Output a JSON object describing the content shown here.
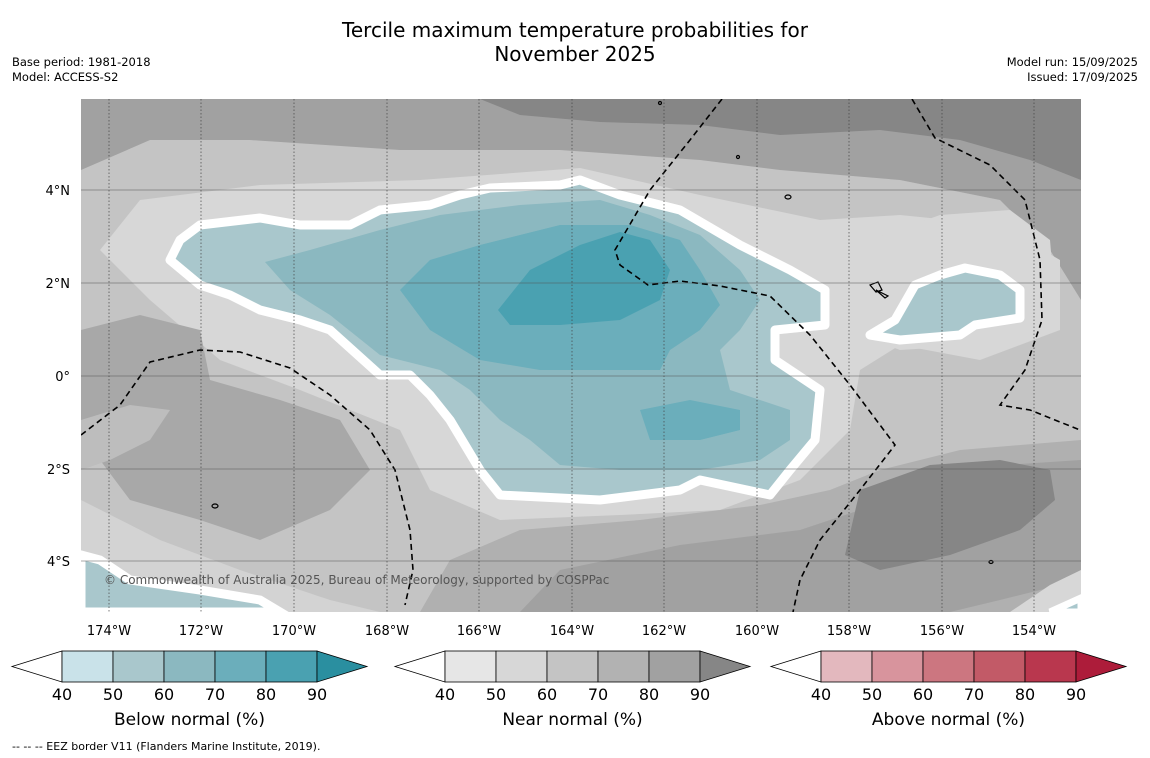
{
  "header": {
    "title_line1": "Tercile maximum temperature probabilities for",
    "title_line2": "November 2025",
    "base_period": "Base period: 1981-2018",
    "model": "Model: ACCESS-S2",
    "model_run": "Model run: 15/09/2025",
    "issued": "Issued: 17/09/2025"
  },
  "map": {
    "credit": "© Commonwealth of Australia 2025, Bureau of Meteorology, supported by COSPPac",
    "lon_labels": [
      "174°W",
      "172°W",
      "170°W",
      "168°W",
      "166°W",
      "164°W",
      "162°W",
      "160°W",
      "158°W",
      "156°W",
      "154°W"
    ],
    "lat_labels": [
      "4°N",
      "2°N",
      "0°",
      "2°S",
      "4°S"
    ]
  },
  "colorbars": [
    {
      "title": "Below normal (%)",
      "ticks": [
        "40",
        "50",
        "60",
        "70",
        "80",
        "90"
      ],
      "colors": [
        "#c9e2e9",
        "#a9c7cc",
        "#8bb8c0",
        "#6baebb",
        "#4aa1b1",
        "#2a8fa0"
      ]
    },
    {
      "title": "Near normal (%)",
      "ticks": [
        "40",
        "50",
        "60",
        "70",
        "80",
        "90"
      ],
      "colors": [
        "#e6e6e6",
        "#d7d7d7",
        "#c4c4c4",
        "#b2b2b2",
        "#a1a1a1",
        "#868686"
      ]
    },
    {
      "title": "Above normal (%)",
      "ticks": [
        "40",
        "50",
        "60",
        "70",
        "80",
        "90"
      ],
      "colors": [
        "#e3b8be",
        "#d8949d",
        "#cc7680",
        "#c25a67",
        "#b9374e",
        "#ad1c3a"
      ]
    }
  ],
  "footnote": "--  --  -- EEZ border V11 (Flanders Marine Institute, 2019)."
}
